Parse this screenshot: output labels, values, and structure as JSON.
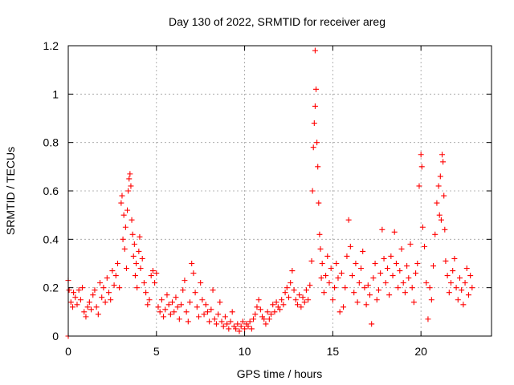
{
  "chart_data": {
    "type": "scatter",
    "title": "Day 130 of 2022, SRMTID for receiver areg",
    "xlabel": "GPS time / hours",
    "ylabel": "SRMTID / TECUs",
    "xlim": [
      0,
      24
    ],
    "ylim": [
      0,
      1.2
    ],
    "xticks": [
      0,
      5,
      10,
      15,
      20
    ],
    "xtick_labels": [
      "0",
      "5",
      "10",
      "15",
      "20"
    ],
    "yticks": [
      0,
      0.2,
      0.4,
      0.6,
      0.8,
      1,
      1.2
    ],
    "ytick_labels": [
      "0",
      "0.2",
      "0.4",
      "0.6",
      "0.8",
      "1",
      "1.2"
    ],
    "grid": true,
    "marker": "+",
    "color": "#ff0000",
    "series": [
      {
        "name": "SRMTID",
        "points": [
          [
            0.0,
            0.0
          ],
          [
            0.0,
            0.23
          ],
          [
            0.05,
            0.19
          ],
          [
            0.15,
            0.14
          ],
          [
            0.25,
            0.12
          ],
          [
            0.3,
            0.18
          ],
          [
            0.4,
            0.16
          ],
          [
            0.5,
            0.13
          ],
          [
            0.6,
            0.19
          ],
          [
            0.7,
            0.15
          ],
          [
            0.8,
            0.2
          ],
          [
            0.9,
            0.1
          ],
          [
            1.0,
            0.08
          ],
          [
            1.1,
            0.12
          ],
          [
            1.2,
            0.14
          ],
          [
            1.3,
            0.11
          ],
          [
            1.4,
            0.17
          ],
          [
            1.5,
            0.19
          ],
          [
            1.6,
            0.12
          ],
          [
            1.7,
            0.09
          ],
          [
            1.8,
            0.22
          ],
          [
            1.9,
            0.16
          ],
          [
            2.0,
            0.2
          ],
          [
            2.1,
            0.14
          ],
          [
            2.2,
            0.24
          ],
          [
            2.3,
            0.18
          ],
          [
            2.4,
            0.15
          ],
          [
            2.5,
            0.27
          ],
          [
            2.6,
            0.21
          ],
          [
            2.7,
            0.25
          ],
          [
            2.8,
            0.3
          ],
          [
            2.9,
            0.2
          ],
          [
            3.0,
            0.55
          ],
          [
            3.05,
            0.58
          ],
          [
            3.1,
            0.4
          ],
          [
            3.15,
            0.5
          ],
          [
            3.2,
            0.36
          ],
          [
            3.25,
            0.45
          ],
          [
            3.3,
            0.28
          ],
          [
            3.35,
            0.52
          ],
          [
            3.4,
            0.6
          ],
          [
            3.45,
            0.65
          ],
          [
            3.5,
            0.67
          ],
          [
            3.55,
            0.62
          ],
          [
            3.6,
            0.48
          ],
          [
            3.65,
            0.42
          ],
          [
            3.7,
            0.33
          ],
          [
            3.75,
            0.38
          ],
          [
            3.8,
            0.25
          ],
          [
            3.85,
            0.3
          ],
          [
            3.9,
            0.2
          ],
          [
            4.0,
            0.35
          ],
          [
            4.05,
            0.41
          ],
          [
            4.1,
            0.28
          ],
          [
            4.2,
            0.32
          ],
          [
            4.3,
            0.22
          ],
          [
            4.4,
            0.18
          ],
          [
            4.5,
            0.13
          ],
          [
            4.6,
            0.15
          ],
          [
            4.7,
            0.25
          ],
          [
            4.8,
            0.27
          ],
          [
            4.9,
            0.22
          ],
          [
            5.0,
            0.26
          ],
          [
            5.1,
            0.12
          ],
          [
            5.2,
            0.1
          ],
          [
            5.3,
            0.15
          ],
          [
            5.4,
            0.08
          ],
          [
            5.5,
            0.11
          ],
          [
            5.6,
            0.17
          ],
          [
            5.7,
            0.13
          ],
          [
            5.8,
            0.09
          ],
          [
            5.9,
            0.14
          ],
          [
            6.0,
            0.1
          ],
          [
            6.1,
            0.16
          ],
          [
            6.2,
            0.12
          ],
          [
            6.3,
            0.07
          ],
          [
            6.4,
            0.13
          ],
          [
            6.5,
            0.19
          ],
          [
            6.6,
            0.23
          ],
          [
            6.7,
            0.1
          ],
          [
            6.8,
            0.06
          ],
          [
            6.9,
            0.14
          ],
          [
            7.0,
            0.3
          ],
          [
            7.1,
            0.26
          ],
          [
            7.2,
            0.18
          ],
          [
            7.3,
            0.12
          ],
          [
            7.4,
            0.08
          ],
          [
            7.5,
            0.22
          ],
          [
            7.6,
            0.15
          ],
          [
            7.7,
            0.09
          ],
          [
            7.8,
            0.13
          ],
          [
            7.9,
            0.1
          ],
          [
            8.0,
            0.06
          ],
          [
            8.1,
            0.11
          ],
          [
            8.2,
            0.19
          ],
          [
            8.3,
            0.07
          ],
          [
            8.4,
            0.05
          ],
          [
            8.5,
            0.09
          ],
          [
            8.6,
            0.14
          ],
          [
            8.7,
            0.06
          ],
          [
            8.8,
            0.04
          ],
          [
            8.9,
            0.08
          ],
          [
            9.0,
            0.05
          ],
          [
            9.1,
            0.03
          ],
          [
            9.2,
            0.06
          ],
          [
            9.3,
            0.1
          ],
          [
            9.4,
            0.04
          ],
          [
            9.5,
            0.03
          ],
          [
            9.6,
            0.05
          ],
          [
            9.7,
            0.02
          ],
          [
            9.8,
            0.04
          ],
          [
            9.9,
            0.06
          ],
          [
            10.0,
            0.03
          ],
          [
            10.1,
            0.05
          ],
          [
            10.2,
            0.04
          ],
          [
            10.3,
            0.06
          ],
          [
            10.4,
            0.03
          ],
          [
            10.5,
            0.07
          ],
          [
            10.6,
            0.09
          ],
          [
            10.7,
            0.12
          ],
          [
            10.8,
            0.15
          ],
          [
            10.9,
            0.11
          ],
          [
            11.0,
            0.08
          ],
          [
            11.1,
            0.07
          ],
          [
            11.2,
            0.05
          ],
          [
            11.3,
            0.1
          ],
          [
            11.4,
            0.07
          ],
          [
            11.5,
            0.09
          ],
          [
            11.6,
            0.13
          ],
          [
            11.7,
            0.1
          ],
          [
            11.8,
            0.14
          ],
          [
            11.9,
            0.12
          ],
          [
            12.0,
            0.11
          ],
          [
            12.1,
            0.15
          ],
          [
            12.2,
            0.13
          ],
          [
            12.3,
            0.18
          ],
          [
            12.4,
            0.2
          ],
          [
            12.5,
            0.16
          ],
          [
            12.6,
            0.22
          ],
          [
            12.7,
            0.27
          ],
          [
            12.8,
            0.19
          ],
          [
            12.9,
            0.15
          ],
          [
            13.0,
            0.13
          ],
          [
            13.1,
            0.17
          ],
          [
            13.2,
            0.12
          ],
          [
            13.3,
            0.16
          ],
          [
            13.4,
            0.14
          ],
          [
            13.5,
            0.19
          ],
          [
            13.6,
            0.15
          ],
          [
            13.7,
            0.21
          ],
          [
            13.8,
            0.31
          ],
          [
            13.85,
            0.6
          ],
          [
            13.9,
            0.78
          ],
          [
            13.95,
            0.88
          ],
          [
            14.0,
            0.95
          ],
          [
            14.05,
            1.02
          ],
          [
            14.0,
            1.18
          ],
          [
            14.1,
            0.8
          ],
          [
            14.15,
            0.7
          ],
          [
            14.2,
            0.55
          ],
          [
            14.25,
            0.42
          ],
          [
            14.3,
            0.36
          ],
          [
            14.35,
            0.24
          ],
          [
            14.4,
            0.3
          ],
          [
            14.5,
            0.18
          ],
          [
            14.6,
            0.25
          ],
          [
            14.7,
            0.33
          ],
          [
            14.8,
            0.22
          ],
          [
            14.9,
            0.28
          ],
          [
            15.0,
            0.15
          ],
          [
            15.1,
            0.2
          ],
          [
            15.2,
            0.3
          ],
          [
            15.3,
            0.24
          ],
          [
            15.4,
            0.1
          ],
          [
            15.5,
            0.26
          ],
          [
            15.6,
            0.12
          ],
          [
            15.7,
            0.2
          ],
          [
            15.8,
            0.33
          ],
          [
            15.9,
            0.48
          ],
          [
            16.0,
            0.37
          ],
          [
            16.1,
            0.25
          ],
          [
            16.2,
            0.18
          ],
          [
            16.3,
            0.3
          ],
          [
            16.4,
            0.14
          ],
          [
            16.5,
            0.22
          ],
          [
            16.6,
            0.28
          ],
          [
            16.7,
            0.35
          ],
          [
            16.8,
            0.2
          ],
          [
            16.9,
            0.13
          ],
          [
            17.0,
            0.21
          ],
          [
            17.1,
            0.17
          ],
          [
            17.2,
            0.05
          ],
          [
            17.3,
            0.24
          ],
          [
            17.4,
            0.3
          ],
          [
            17.5,
            0.15
          ],
          [
            17.6,
            0.19
          ],
          [
            17.7,
            0.26
          ],
          [
            17.8,
            0.44
          ],
          [
            17.9,
            0.32
          ],
          [
            18.0,
            0.22
          ],
          [
            18.1,
            0.28
          ],
          [
            18.2,
            0.17
          ],
          [
            18.3,
            0.33
          ],
          [
            18.4,
            0.25
          ],
          [
            18.5,
            0.43
          ],
          [
            18.6,
            0.3
          ],
          [
            18.7,
            0.2
          ],
          [
            18.8,
            0.27
          ],
          [
            18.9,
            0.36
          ],
          [
            19.0,
            0.22
          ],
          [
            19.1,
            0.18
          ],
          [
            19.2,
            0.29
          ],
          [
            19.3,
            0.24
          ],
          [
            19.4,
            0.38
          ],
          [
            19.5,
            0.2
          ],
          [
            19.6,
            0.14
          ],
          [
            19.7,
            0.26
          ],
          [
            19.8,
            0.3
          ],
          [
            19.9,
            0.62
          ],
          [
            20.0,
            0.75
          ],
          [
            20.05,
            0.7
          ],
          [
            20.1,
            0.45
          ],
          [
            20.2,
            0.37
          ],
          [
            20.3,
            0.22
          ],
          [
            20.4,
            0.07
          ],
          [
            20.5,
            0.2
          ],
          [
            20.6,
            0.15
          ],
          [
            20.7,
            0.29
          ],
          [
            20.8,
            0.42
          ],
          [
            20.9,
            0.55
          ],
          [
            21.0,
            0.62
          ],
          [
            21.05,
            0.5
          ],
          [
            21.1,
            0.66
          ],
          [
            21.15,
            0.48
          ],
          [
            21.2,
            0.75
          ],
          [
            21.25,
            0.72
          ],
          [
            21.3,
            0.58
          ],
          [
            21.35,
            0.44
          ],
          [
            21.4,
            0.31
          ],
          [
            21.5,
            0.25
          ],
          [
            21.6,
            0.18
          ],
          [
            21.7,
            0.22
          ],
          [
            21.8,
            0.27
          ],
          [
            21.9,
            0.32
          ],
          [
            22.0,
            0.2
          ],
          [
            22.1,
            0.15
          ],
          [
            22.2,
            0.24
          ],
          [
            22.3,
            0.19
          ],
          [
            22.4,
            0.13
          ],
          [
            22.5,
            0.22
          ],
          [
            22.6,
            0.28
          ],
          [
            22.7,
            0.17
          ],
          [
            22.8,
            0.25
          ],
          [
            22.9,
            0.2
          ]
        ]
      }
    ]
  }
}
